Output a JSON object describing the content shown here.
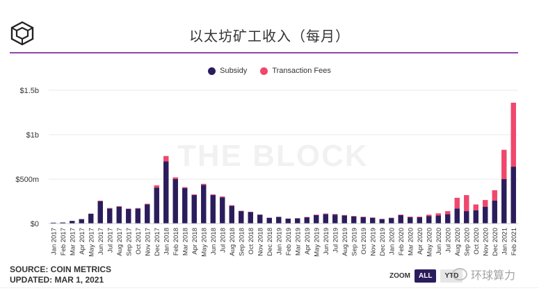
{
  "header": {
    "title": "以太坊矿工收入（每月）"
  },
  "watermark": "THE BLOCK",
  "footer": {
    "source": "SOURCE: COIN METRICS",
    "updated": "UPDATED: MAR 1, 2021"
  },
  "zoom": {
    "label": "ZOOM",
    "options": [
      "ALL",
      "YTD"
    ],
    "selected": "ALL"
  },
  "wechat": {
    "text": "环球算力"
  },
  "colors": {
    "subsidy": "#2b1d5c",
    "fees": "#f0476d",
    "accent": "#8e44ad"
  },
  "chart_data": {
    "type": "bar",
    "stacked": true,
    "title": "以太坊矿工收入（每月）",
    "legend_position": "top-center",
    "grid": true,
    "ylim": [
      0,
      1500000000
    ],
    "yticks": [
      {
        "value": 0,
        "label": "$0"
      },
      {
        "value": 500000000,
        "label": "$500m"
      },
      {
        "value": 1000000000,
        "label": "$1b"
      },
      {
        "value": 1500000000,
        "label": "$1.5b"
      }
    ],
    "categories": [
      "Jan 2017",
      "Feb 2017",
      "Mar 2017",
      "Apr 2017",
      "May 2017",
      "Jun 2017",
      "Jul 2017",
      "Aug 2017",
      "Sep 2017",
      "Oct 2017",
      "Nov 2017",
      "Dec 2017",
      "Jan 2018",
      "Feb 2018",
      "Mar 2018",
      "Apr 2018",
      "May 2018",
      "Jun 2018",
      "Jul 2018",
      "Aug 2018",
      "Sep 2018",
      "Oct 2018",
      "Nov 2018",
      "Dec 2018",
      "Jan 2019",
      "Feb 2019",
      "Mar 2019",
      "Apr 2019",
      "May 2019",
      "Jun 2019",
      "Jul 2019",
      "Aug 2019",
      "Sep 2019",
      "Oct 2019",
      "Nov 2019",
      "Dec 2019",
      "Jan 2020",
      "Feb 2020",
      "Mar 2020",
      "Apr 2020",
      "May 2020",
      "Jun 2020",
      "Jul 2020",
      "Aug 2020",
      "Sep 2020",
      "Oct 2020",
      "Nov 2020",
      "Dec 2020",
      "Jan 2021",
      "Feb 2021"
    ],
    "series": [
      {
        "name": "Subsidy",
        "color": "#2b1d5c",
        "values": [
          10000000,
          12000000,
          30000000,
          50000000,
          110000000,
          250000000,
          170000000,
          190000000,
          165000000,
          170000000,
          215000000,
          405000000,
          700000000,
          500000000,
          400000000,
          320000000,
          435000000,
          320000000,
          295000000,
          200000000,
          140000000,
          130000000,
          100000000,
          65000000,
          75000000,
          55000000,
          58000000,
          70000000,
          95000000,
          105000000,
          100000000,
          90000000,
          80000000,
          72000000,
          65000000,
          50000000,
          62000000,
          95000000,
          70000000,
          70000000,
          85000000,
          90000000,
          105000000,
          170000000,
          140000000,
          150000000,
          190000000,
          260000000,
          500000000,
          640000000
        ]
      },
      {
        "name": "Transaction Fees",
        "color": "#f0476d",
        "values": [
          0,
          0,
          0,
          0,
          2000000,
          8000000,
          5000000,
          6000000,
          4000000,
          4000000,
          8000000,
          25000000,
          60000000,
          20000000,
          10000000,
          8000000,
          12000000,
          8000000,
          10000000,
          6000000,
          4000000,
          3000000,
          2000000,
          1000000,
          1000000,
          2000000,
          3000000,
          4000000,
          6000000,
          8000000,
          8000000,
          6000000,
          6000000,
          6000000,
          4000000,
          3000000,
          4000000,
          6000000,
          8000000,
          8000000,
          15000000,
          25000000,
          35000000,
          120000000,
          180000000,
          65000000,
          75000000,
          115000000,
          330000000,
          720000000
        ]
      }
    ]
  }
}
